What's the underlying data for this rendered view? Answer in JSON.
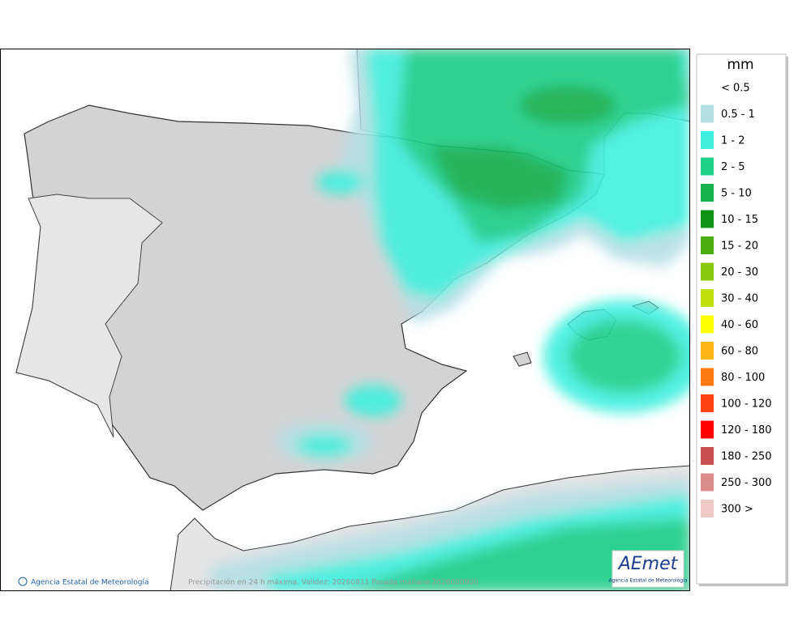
{
  "legend": {
    "title": "mm",
    "items": [
      {
        "label": "< 0.5",
        "color": "#ffffff"
      },
      {
        "label": "0.5 - 1",
        "color": "#b4dfe4"
      },
      {
        "label": "1 - 2",
        "color": "#3ff0de"
      },
      {
        "label": "2 - 5",
        "color": "#1fd08a"
      },
      {
        "label": "5 - 10",
        "color": "#16b04c"
      },
      {
        "label": "10 - 15",
        "color": "#0e9414"
      },
      {
        "label": "15 - 20",
        "color": "#4aae12"
      },
      {
        "label": "20 - 30",
        "color": "#86c80e"
      },
      {
        "label": "30 - 40",
        "color": "#c0e00a"
      },
      {
        "label": "40 - 60",
        "color": "#ffff00"
      },
      {
        "label": "60 - 80",
        "color": "#ffb418"
      },
      {
        "label": "80 - 100",
        "color": "#ff7a10"
      },
      {
        "label": "100 - 120",
        "color": "#ff4414"
      },
      {
        "label": "120 - 180",
        "color": "#ff0000"
      },
      {
        "label": "180 - 250",
        "color": "#c85050"
      },
      {
        "label": "250 - 300",
        "color": "#dc8c8c"
      },
      {
        "label": "300 >",
        "color": "#f0c8c8"
      }
    ]
  },
  "footer": {
    "agency": "Agencia Estatal de Meteorología",
    "caption": "Precipitación en 24 h máxima. Validez: 20260811 Pasada mañana 2026000900"
  },
  "logo": {
    "name": "AEmet",
    "subtitle": "Agencia Estatal de Meteorología"
  }
}
